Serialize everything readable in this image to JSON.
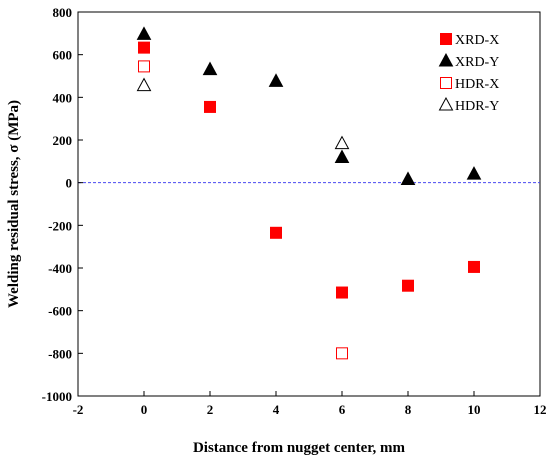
{
  "chart_data": {
    "type": "scatter",
    "title": "",
    "xlabel": "Distance from nugget center, mm",
    "ylabel": "Welding residual stress, σ (MPa)",
    "xlim": [
      -2,
      12
    ],
    "ylim": [
      -1000,
      800
    ],
    "xticks": [
      -2,
      0,
      2,
      4,
      6,
      8,
      10,
      12
    ],
    "yticks": [
      800,
      600,
      400,
      200,
      0,
      -200,
      -400,
      -600,
      -800,
      -1000
    ],
    "reference_line": {
      "y": 0,
      "style": "dashed",
      "color": "#4a4af0"
    },
    "grid": false,
    "legend_position": "top-right",
    "series": [
      {
        "name": "XRD-X",
        "marker": "square",
        "filled": true,
        "color": "#ff0000",
        "points": [
          [
            0,
            633
          ],
          [
            2,
            355
          ],
          [
            4,
            -235
          ],
          [
            6,
            -515
          ],
          [
            8,
            -483
          ],
          [
            10,
            -395
          ]
        ]
      },
      {
        "name": "XRD-Y",
        "marker": "triangle",
        "filled": true,
        "color": "#000000",
        "points": [
          [
            0,
            695
          ],
          [
            2,
            530
          ],
          [
            4,
            475
          ],
          [
            6,
            118
          ],
          [
            8,
            15
          ],
          [
            10,
            40
          ]
        ]
      },
      {
        "name": "HDR-X",
        "marker": "square",
        "filled": false,
        "color": "#ff0000",
        "points": [
          [
            0,
            545
          ],
          [
            6,
            -800
          ]
        ]
      },
      {
        "name": "HDR-Y",
        "marker": "triangle",
        "filled": false,
        "color": "#000000",
        "points": [
          [
            0,
            455
          ],
          [
            6,
            183
          ]
        ]
      }
    ]
  }
}
